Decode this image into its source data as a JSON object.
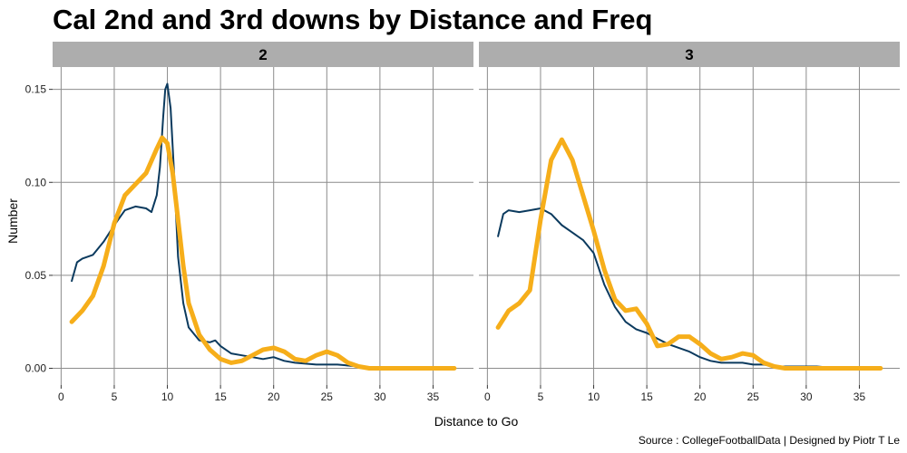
{
  "title": "Cal 2nd and 3rd downs by Distance and Freq",
  "caption": "Source : CollegeFootballData | Designed by Piotr T Le",
  "chart_data": {
    "type": "line",
    "facet_by": "down",
    "xlabel": "Distance to Go",
    "ylabel": "Number",
    "xlim": [
      -0.8,
      38.8
    ],
    "ylim": [
      -0.009,
      0.162
    ],
    "xticks": [
      0,
      5,
      10,
      15,
      20,
      25,
      30,
      35
    ],
    "xtick_labels": [
      "0",
      "5",
      "10",
      "15",
      "20",
      "25",
      "30",
      "35"
    ],
    "yticks": [
      0,
      0.05,
      0.1,
      0.15
    ],
    "ytick_labels": [
      "0.00",
      "0.05",
      "0.10",
      "0.15"
    ],
    "grid": true,
    "legend": "none",
    "series_styles": [
      {
        "color": "#0b3a5e",
        "width": 2
      },
      {
        "color": "#f6ae1a",
        "width": 5
      }
    ],
    "panels": [
      {
        "label": "2",
        "series": [
          {
            "x": [
              1,
              1.5,
              2,
              3,
              4,
              5,
              6,
              7,
              8,
              8.5,
              9,
              9.3,
              9.6,
              9.8,
              10,
              10.3,
              10.6,
              11,
              11.5,
              12,
              13,
              14,
              14.5,
              15,
              16,
              17,
              18,
              19,
              20,
              21,
              22,
              24,
              26,
              28,
              29,
              31,
              33,
              35,
              37
            ],
            "y": [
              0.047,
              0.057,
              0.059,
              0.061,
              0.068,
              0.077,
              0.085,
              0.087,
              0.086,
              0.084,
              0.093,
              0.108,
              0.135,
              0.15,
              0.153,
              0.14,
              0.108,
              0.06,
              0.035,
              0.022,
              0.015,
              0.014,
              0.015,
              0.012,
              0.008,
              0.007,
              0.006,
              0.005,
              0.006,
              0.004,
              0.003,
              0.002,
              0.002,
              0.001,
              0.0,
              0.0,
              0.0,
              0.0,
              0.0
            ]
          },
          {
            "x": [
              1,
              2,
              3,
              4,
              5,
              6,
              7,
              8,
              9,
              9.5,
              10,
              10.5,
              11,
              11.5,
              12,
              13,
              14,
              15,
              16,
              17,
              18,
              19,
              20,
              21,
              22,
              23,
              24,
              25,
              26,
              27,
              28,
              29,
              30,
              32,
              35,
              37
            ],
            "y": [
              0.025,
              0.031,
              0.039,
              0.055,
              0.078,
              0.093,
              0.099,
              0.105,
              0.118,
              0.124,
              0.121,
              0.105,
              0.08,
              0.055,
              0.035,
              0.018,
              0.01,
              0.005,
              0.003,
              0.004,
              0.007,
              0.01,
              0.011,
              0.009,
              0.005,
              0.004,
              0.007,
              0.009,
              0.007,
              0.003,
              0.001,
              0.0,
              0.0,
              0.0,
              0.0,
              0.0
            ]
          }
        ]
      },
      {
        "label": "3",
        "series": [
          {
            "x": [
              1,
              1.5,
              2,
              3,
              4,
              5,
              6,
              7,
              8,
              9,
              10,
              11,
              12,
              13,
              14,
              15,
              16,
              17,
              18,
              19,
              20,
              21,
              22,
              23,
              24,
              25,
              26,
              27,
              28,
              30,
              31,
              33,
              35,
              37
            ],
            "y": [
              0.071,
              0.083,
              0.085,
              0.084,
              0.085,
              0.086,
              0.083,
              0.077,
              0.073,
              0.069,
              0.062,
              0.045,
              0.033,
              0.025,
              0.021,
              0.019,
              0.016,
              0.013,
              0.011,
              0.009,
              0.006,
              0.004,
              0.003,
              0.003,
              0.003,
              0.002,
              0.002,
              0.001,
              0.001,
              0.001,
              0.001,
              0.0,
              0.0,
              0.0
            ]
          },
          {
            "x": [
              1,
              2,
              3,
              4,
              5,
              6,
              7,
              8,
              9,
              10,
              11,
              12,
              13,
              14,
              15,
              16,
              17,
              18,
              19,
              20,
              21,
              22,
              23,
              24,
              25,
              26,
              27,
              28,
              30,
              33,
              35,
              37
            ],
            "y": [
              0.022,
              0.031,
              0.035,
              0.042,
              0.08,
              0.112,
              0.123,
              0.112,
              0.093,
              0.074,
              0.053,
              0.037,
              0.031,
              0.032,
              0.024,
              0.012,
              0.013,
              0.017,
              0.017,
              0.013,
              0.008,
              0.005,
              0.006,
              0.008,
              0.007,
              0.003,
              0.001,
              0.0,
              0.0,
              0.0,
              0.0,
              0.0
            ]
          }
        ]
      }
    ]
  }
}
